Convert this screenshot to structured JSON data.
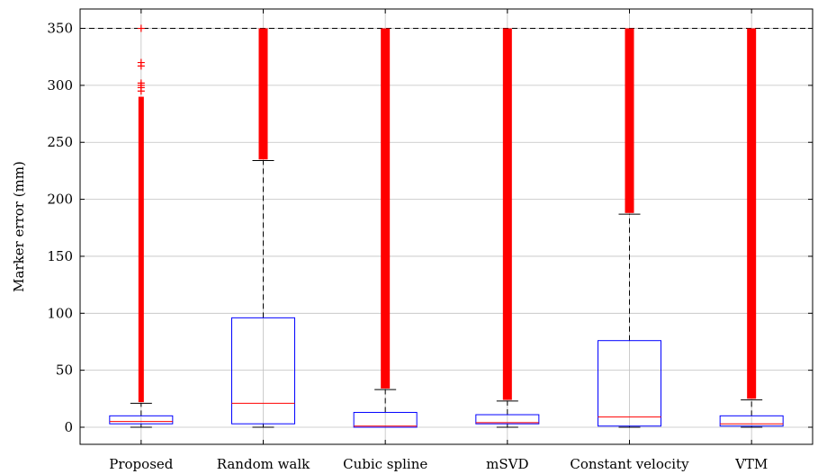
{
  "chart_data": {
    "type": "box",
    "categories": [
      "Proposed",
      "Random walk",
      "Cubic spline",
      "mSVD",
      "Constant velocity",
      "VTM"
    ],
    "ylabel": "Marker error (mm)",
    "xlabel": "",
    "ylim": [
      -15,
      367
    ],
    "yticks": [
      0,
      50,
      100,
      150,
      200,
      250,
      300,
      350
    ],
    "reference_line": {
      "y": 350,
      "style": "dashed"
    },
    "grid": true,
    "boxes": [
      {
        "name": "Proposed",
        "min": 0,
        "q1": 3,
        "median": 5,
        "q3": 10,
        "whisker_high": 21,
        "outliers_from": 22,
        "outliers_to": 290,
        "extra_outliers": [
          295,
          298,
          300,
          302,
          317,
          320,
          350
        ]
      },
      {
        "name": "Random walk",
        "min": 0,
        "q1": 3,
        "median": 21,
        "q3": 96,
        "whisker_high": 234,
        "outliers_from": 235,
        "outliers_to": 350,
        "extra_outliers": []
      },
      {
        "name": "Cubic spline",
        "min": 0,
        "q1": 0,
        "median": 1,
        "q3": 13,
        "whisker_high": 33,
        "outliers_from": 34,
        "outliers_to": 350,
        "extra_outliers": []
      },
      {
        "name": "mSVD",
        "min": 0,
        "q1": 3,
        "median": 4,
        "q3": 11,
        "whisker_high": 23,
        "outliers_from": 24,
        "outliers_to": 350,
        "extra_outliers": []
      },
      {
        "name": "Constant velocity",
        "min": 0,
        "q1": 1,
        "median": 9,
        "q3": 76,
        "whisker_high": 187,
        "outliers_from": 188,
        "outliers_to": 350,
        "extra_outliers": []
      },
      {
        "name": "VTM",
        "min": 0,
        "q1": 1,
        "median": 3,
        "q3": 10,
        "whisker_high": 24,
        "outliers_from": 25,
        "outliers_to": 350,
        "extra_outliers": []
      }
    ],
    "colors": {
      "box": "#0000ff",
      "median": "#ff0000",
      "outlier": "#ff0000",
      "whisker": "#000000",
      "grid": "#c0c0c0"
    }
  }
}
